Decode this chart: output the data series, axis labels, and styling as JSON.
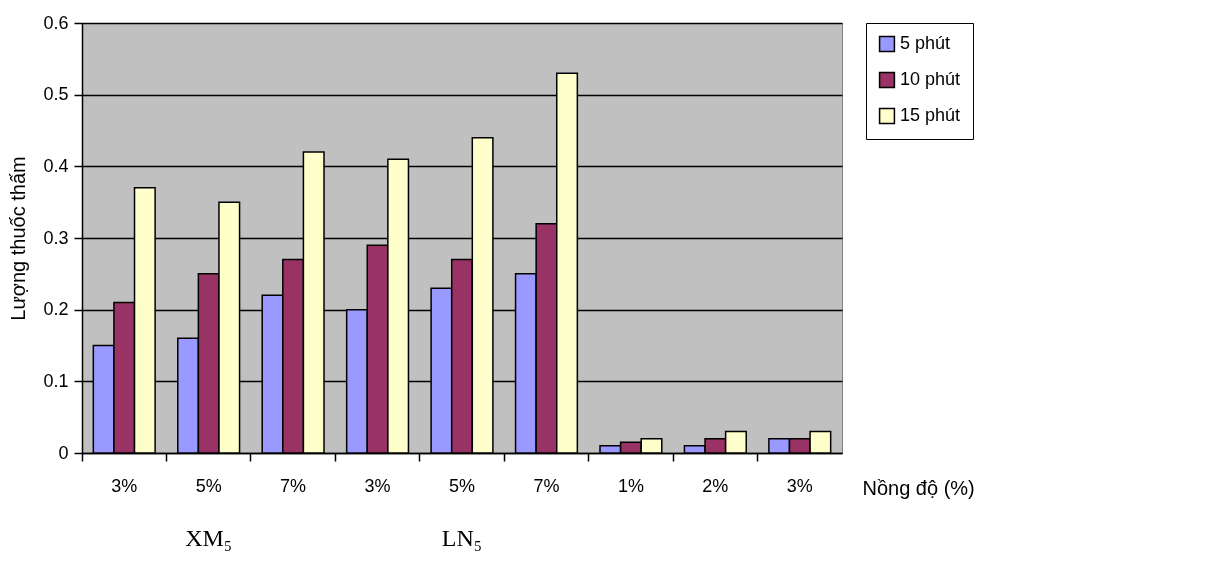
{
  "chart_data": {
    "type": "bar",
    "ylabel": "Lượng thuốc thấm",
    "xlabel": "Nồng độ (%)",
    "categories": [
      "3%",
      "5%",
      "7%",
      "3%",
      "5%",
      "7%",
      "1%",
      "2%",
      "3%"
    ],
    "series": [
      {
        "name": "5 phút",
        "color": "#9999ff",
        "values": [
          0.15,
          0.16,
          0.22,
          0.2,
          0.23,
          0.25,
          0.01,
          0.01,
          0.02
        ]
      },
      {
        "name": "10 phút",
        "color": "#993366",
        "values": [
          0.21,
          0.25,
          0.27,
          0.29,
          0.27,
          0.32,
          0.015,
          0.02,
          0.02
        ]
      },
      {
        "name": "15 phút",
        "color": "#ffffcc",
        "values": [
          0.37,
          0.35,
          0.42,
          0.41,
          0.44,
          0.53,
          0.02,
          0.03,
          0.03
        ]
      }
    ],
    "annotations": [
      "XM₅",
      "LN₅"
    ],
    "ylim": [
      0,
      0.6
    ],
    "yticks": [
      0,
      0.1,
      0.2,
      0.3,
      0.4,
      0.5,
      0.6
    ],
    "grid": "y",
    "legend": "right"
  }
}
